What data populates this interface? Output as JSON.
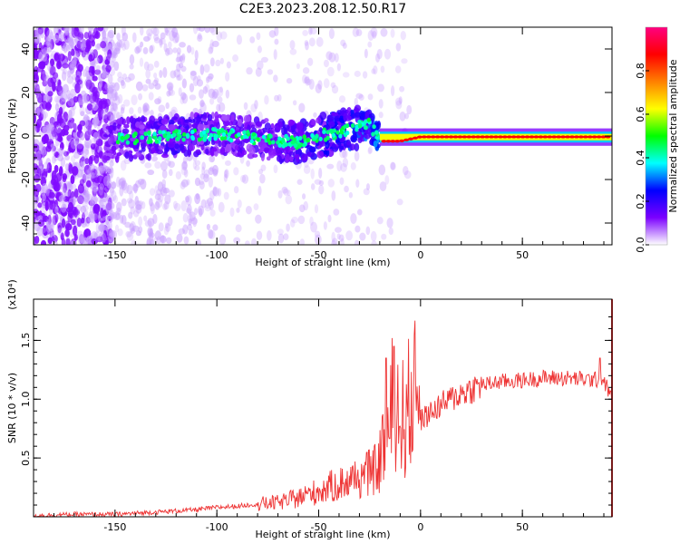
{
  "title": "C2E3.2023.208.12.50.R17",
  "chart_data": [
    {
      "type": "heatmap",
      "xlabel": "Height of straight line (km)",
      "ylabel": "Frequency (Hz)",
      "xlim": [
        -190,
        94
      ],
      "ylim": [
        -50,
        50
      ],
      "x_ticks": [
        -150,
        -100,
        -50,
        0,
        50
      ],
      "y_ticks": [
        -40,
        -20,
        0,
        20,
        40
      ],
      "colorbar": {
        "label": "Normalized spectral amplitude",
        "range": [
          0,
          1
        ],
        "ticks": [
          "0.0",
          "0.2",
          "0.4",
          "0.6",
          "0.8"
        ],
        "colormap": [
          "#ffffff",
          "#7b00ff",
          "#0000ff",
          "#00ffff",
          "#00ff00",
          "#ffff00",
          "#ff8000",
          "#ff0000",
          "#ff0080"
        ]
      },
      "signal_trace": {
        "x": [
          -155,
          -140,
          -120,
          -100,
          -80,
          -60,
          -50,
          -40,
          -30,
          -25,
          -22,
          -18,
          -10,
          0,
          20,
          50,
          94
        ],
        "frequency": [
          -2,
          -1,
          0,
          1,
          -1,
          -3,
          0,
          2,
          4,
          5,
          1,
          -2,
          -2,
          0,
          0,
          0,
          0
        ],
        "amplitude": [
          0.25,
          0.3,
          0.35,
          0.3,
          0.3,
          0.35,
          0.4,
          0.45,
          0.5,
          0.55,
          0.6,
          0.8,
          0.85,
          0.9,
          0.95,
          0.95,
          0.95
        ]
      },
      "noise_region_x": [
        -190,
        -150
      ],
      "grid": false
    },
    {
      "type": "line",
      "xlabel": "Height of straight line (km)",
      "ylabel": "SNR (10 * v/v)",
      "y_multiplier": "(x10⁴)",
      "xlim": [
        -190,
        94
      ],
      "ylim": [
        0,
        1.85
      ],
      "x_ticks": [
        -150,
        -100,
        -50,
        0,
        50
      ],
      "y_ticks": [
        0.5,
        1.0,
        1.5
      ],
      "series": [
        {
          "color": "#ee3333",
          "x": [
            -190,
            -170,
            -150,
            -130,
            -110,
            -100,
            -90,
            -80,
            -70,
            -60,
            -50,
            -40,
            -30,
            -20,
            -15,
            -13,
            -10,
            -5,
            0,
            10,
            20,
            30,
            40,
            50,
            60,
            70,
            80,
            90,
            94
          ],
          "y": [
            0.01,
            0.02,
            0.02,
            0.04,
            0.06,
            0.08,
            0.09,
            0.11,
            0.12,
            0.16,
            0.22,
            0.28,
            0.33,
            0.42,
            0.55,
            0.9,
            0.6,
            0.75,
            0.82,
            0.95,
            1.05,
            1.12,
            1.15,
            1.16,
            1.18,
            1.18,
            1.17,
            1.16,
            1.0
          ],
          "peak_spikes": [
            {
              "x": -17,
              "y": 1.35
            },
            {
              "x": -13,
              "y": 1.45
            },
            {
              "x": 88,
              "y": 1.35
            }
          ]
        }
      ],
      "grid": false
    }
  ]
}
